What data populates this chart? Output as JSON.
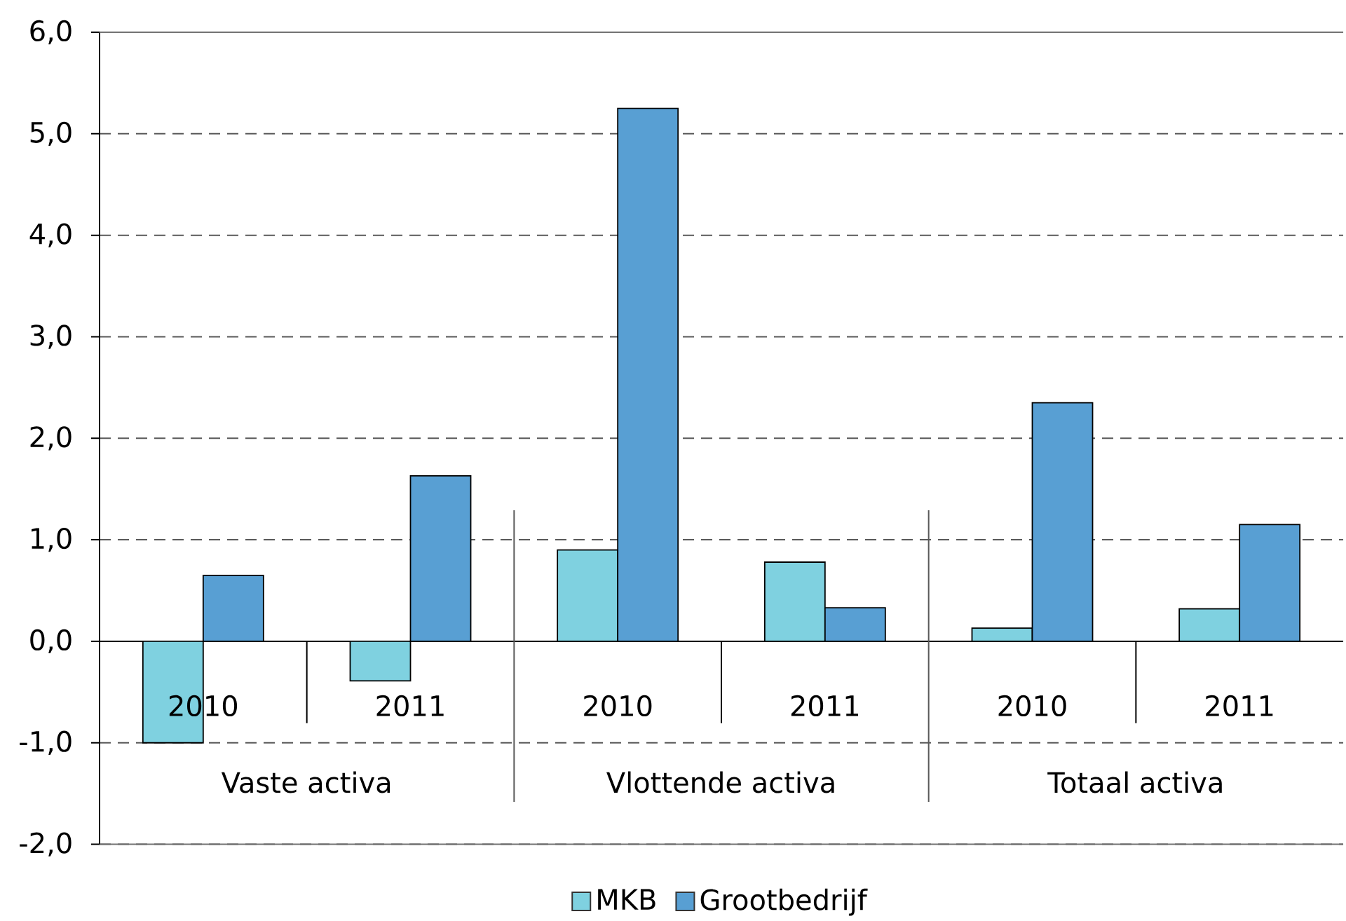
{
  "chart_data": {
    "type": "bar",
    "categories": [
      "2010",
      "2011",
      "2010",
      "2011",
      "2010",
      "2011"
    ],
    "series": [
      {
        "name": "MKB",
        "color": "#7fd1e0",
        "values": [
          -1.0,
          -0.39,
          0.9,
          0.78,
          0.13,
          0.32
        ]
      },
      {
        "name": "Grootbedrijf",
        "color": "#589fd3",
        "values": [
          0.65,
          1.63,
          5.25,
          0.33,
          2.35,
          1.15
        ]
      }
    ],
    "ylim": [
      -2,
      6
    ],
    "yticks": [
      {
        "value": -2,
        "label": "-2,0"
      },
      {
        "value": -1,
        "label": "-1,0"
      },
      {
        "value": 0,
        "label": "0,0"
      },
      {
        "value": 1,
        "label": "1,0"
      },
      {
        "value": 2,
        "label": "2,0"
      },
      {
        "value": 3,
        "label": "3,0"
      },
      {
        "value": 4,
        "label": "4,0"
      },
      {
        "value": 5,
        "label": "5,0"
      },
      {
        "value": 6,
        "label": "6,0"
      }
    ],
    "grid": "y",
    "legend": "bottom",
    "annotations": [
      "Vaste activa",
      "Vlottende activa",
      "Totaal activa"
    ]
  }
}
